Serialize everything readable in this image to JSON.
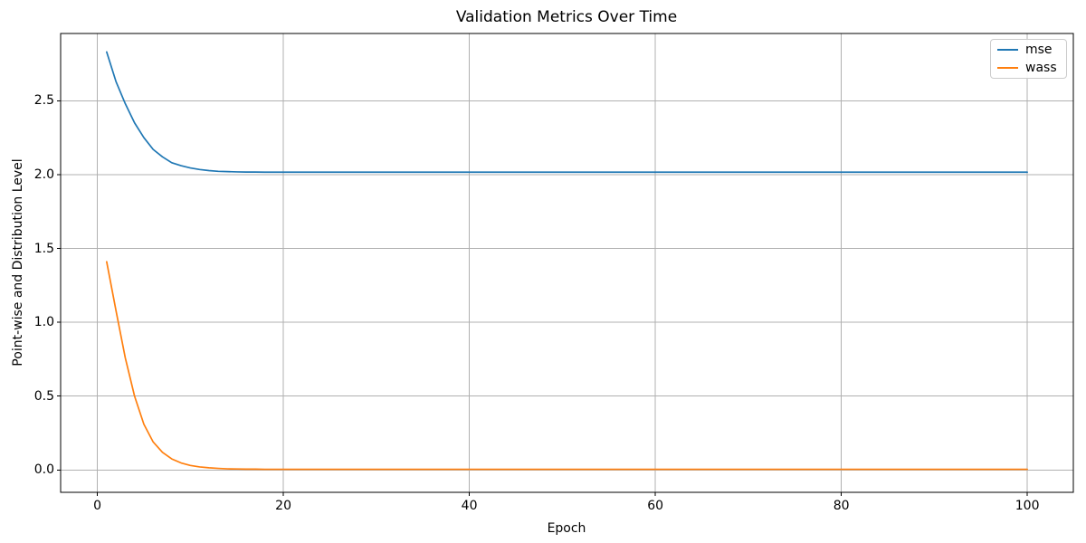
{
  "chart_data": {
    "type": "line",
    "title": "Validation Metrics Over Time",
    "xlabel": "Epoch",
    "ylabel": "Point-wise and Distribution Level",
    "xlim": [
      -3.95,
      104.95
    ],
    "ylim": [
      -0.151,
      2.955
    ],
    "x_ticks": [
      0,
      20,
      40,
      60,
      80,
      100
    ],
    "x_tick_labels": [
      "0",
      "20",
      "40",
      "60",
      "80",
      "100"
    ],
    "y_ticks": [
      0.0,
      0.5,
      1.0,
      1.5,
      2.0,
      2.5
    ],
    "y_tick_labels": [
      "0.0",
      "0.5",
      "1.0",
      "1.5",
      "2.0",
      "2.5"
    ],
    "grid": true,
    "legend_position": "upper right",
    "x": [
      1,
      2,
      3,
      4,
      5,
      6,
      7,
      8,
      9,
      10,
      11,
      12,
      13,
      14,
      15,
      16,
      17,
      18,
      19,
      20,
      25,
      30,
      35,
      40,
      45,
      50,
      55,
      60,
      65,
      70,
      75,
      80,
      85,
      90,
      95,
      100
    ],
    "series": [
      {
        "name": "mse",
        "color": "#1f77b4",
        "values": [
          2.83,
          2.63,
          2.48,
          2.35,
          2.25,
          2.17,
          2.12,
          2.08,
          2.06,
          2.045,
          2.034,
          2.027,
          2.022,
          2.02,
          2.018,
          2.017,
          2.017,
          2.016,
          2.016,
          2.016,
          2.016,
          2.016,
          2.016,
          2.016,
          2.016,
          2.016,
          2.016,
          2.016,
          2.016,
          2.016,
          2.016,
          2.016,
          2.016,
          2.016,
          2.016,
          2.016
        ]
      },
      {
        "name": "wass",
        "color": "#ff7f0e",
        "values": [
          1.41,
          1.08,
          0.76,
          0.5,
          0.31,
          0.19,
          0.12,
          0.075,
          0.048,
          0.031,
          0.021,
          0.015,
          0.011,
          0.008,
          0.007,
          0.006,
          0.006,
          0.005,
          0.005,
          0.005,
          0.005,
          0.005,
          0.005,
          0.005,
          0.005,
          0.005,
          0.005,
          0.005,
          0.005,
          0.005,
          0.005,
          0.005,
          0.005,
          0.005,
          0.005,
          0.005
        ]
      }
    ]
  },
  "legend": {
    "items": [
      {
        "label": "mse",
        "color": "#1f77b4"
      },
      {
        "label": "wass",
        "color": "#ff7f0e"
      }
    ]
  },
  "colors": {
    "background": "#ffffff",
    "grid": "#b0b0b0",
    "spine": "#000000",
    "text": "#000000",
    "legend_border": "#cccccc"
  }
}
